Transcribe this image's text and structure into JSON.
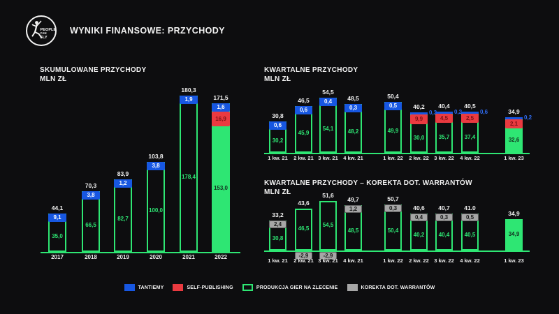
{
  "header": {
    "title": "WYNIKI FINANSOWE: PRZYCHODY",
    "logo_text": [
      "PEOPLE",
      "CAN",
      "FLY"
    ]
  },
  "colors": {
    "background": "#0d0d0f",
    "tantiemy_blue": "#1757e2",
    "self_publishing_red": "#ea3a40",
    "produkcja_green": "#2ee673",
    "korekta_gray": "#a6a6a6",
    "text_white": "#f2f2f2"
  },
  "legend": [
    {
      "label": "TANTIEMY",
      "swatch": "blue"
    },
    {
      "label": "SELF-PUBLISHING",
      "swatch": "red"
    },
    {
      "label": "PRODUKCJA GIER NA ZLECENIE",
      "swatch": "green-outline"
    },
    {
      "label": "KOREKTA DOT. WARRANTÓW",
      "swatch": "gray"
    }
  ],
  "chart_data": [
    {
      "id": "cumulative",
      "type": "bar",
      "stacked": true,
      "title": "SKUMULOWANE PRZYCHODY",
      "unit_label": "MLN ZŁ",
      "categories": [
        "2017",
        "2018",
        "2019",
        "2020",
        "2021",
        "2022"
      ],
      "series": [
        {
          "name": "PRODUKCJA GIER NA ZLECENIE",
          "values": [
            35.0,
            66.5,
            82.7,
            100.0,
            178.4,
            153.0
          ]
        },
        {
          "name": "SELF-PUBLISHING",
          "values": [
            null,
            null,
            null,
            null,
            null,
            16.9
          ]
        },
        {
          "name": "TANTIEMY",
          "values": [
            9.1,
            3.8,
            1.2,
            3.8,
            1.9,
            1.6
          ]
        }
      ],
      "totals": [
        44.1,
        70.3,
        83.9,
        103.8,
        180.3,
        171.5
      ],
      "bars": [
        {
          "category": "2017",
          "total_label": "44,1",
          "segments": [
            {
              "kind": "green-outline",
              "value": 35.0,
              "label": "35,0"
            },
            {
              "kind": "blue",
              "value": 9.1,
              "label": "9,1",
              "label_pos": "inside"
            }
          ]
        },
        {
          "category": "2018",
          "total_label": "70,3",
          "segments": [
            {
              "kind": "green-outline",
              "value": 66.5,
              "label": "66,5"
            },
            {
              "kind": "blue",
              "value": 3.8,
              "label": "3,8",
              "label_pos": "inside"
            }
          ]
        },
        {
          "category": "2019",
          "total_label": "83,9",
          "segments": [
            {
              "kind": "green-outline",
              "value": 82.7,
              "label": "82,7"
            },
            {
              "kind": "blue",
              "value": 1.2,
              "label": "1,2",
              "label_pos": "inside"
            }
          ]
        },
        {
          "category": "2020",
          "total_label": "103,8",
          "segments": [
            {
              "kind": "green-outline",
              "value": 100.0,
              "label": "100,0"
            },
            {
              "kind": "blue",
              "value": 3.8,
              "label": "3,8",
              "label_pos": "inside"
            }
          ]
        },
        {
          "category": "2021",
          "total_label": "180,3",
          "segments": [
            {
              "kind": "green-outline",
              "value": 178.4,
              "label": "178,4"
            },
            {
              "kind": "blue",
              "value": 1.9,
              "label": "1,9",
              "label_pos": "inside"
            }
          ]
        },
        {
          "category": "2022",
          "total_label": "171,5",
          "segments": [
            {
              "kind": "green-solid",
              "value": 153.0,
              "label": "153,0"
            },
            {
              "kind": "red",
              "value": 16.9,
              "label": "16,9",
              "label_pos": "inside"
            },
            {
              "kind": "blue",
              "value": 1.6,
              "label": "1,6",
              "label_pos": "inside"
            }
          ]
        }
      ]
    },
    {
      "id": "quarterly",
      "type": "bar",
      "stacked": true,
      "title": "KWARTALNE PRZYCHODY",
      "unit_label": "MLN ZŁ",
      "categories": [
        "1 kw. 21",
        "2 kw. 21",
        "3 kw. 21",
        "4 kw. 21",
        "1 kw. 22",
        "2 kw. 22",
        "3 kw. 22",
        "4 kw. 22",
        "1 kw. 23"
      ],
      "series": [
        {
          "name": "PRODUKCJA GIER NA ZLECENIE",
          "values": [
            30.2,
            45.9,
            54.1,
            48.2,
            49.9,
            30.0,
            35.7,
            37.4,
            32.6
          ]
        },
        {
          "name": "SELF-PUBLISHING",
          "values": [
            null,
            null,
            null,
            null,
            null,
            9.9,
            4.5,
            2.5,
            2.1
          ]
        },
        {
          "name": "TANTIEMY",
          "values": [
            0.6,
            0.6,
            0.4,
            0.3,
            0.5,
            0.3,
            0.2,
            0.6,
            0.2
          ]
        }
      ],
      "totals": [
        30.8,
        46.5,
        54.5,
        48.5,
        50.4,
        40.2,
        40.4,
        40.5,
        34.9
      ],
      "bars": [
        {
          "category": "1 kw. 21",
          "total_label": "30,8",
          "segments": [
            {
              "kind": "green-outline",
              "value": 30.2,
              "label": "30,2"
            },
            {
              "kind": "blue",
              "value": 0.6,
              "label": "0,6",
              "label_pos": "inside"
            }
          ]
        },
        {
          "category": "2 kw. 21",
          "total_label": "46,5",
          "segments": [
            {
              "kind": "green-outline",
              "value": 45.9,
              "label": "45,9"
            },
            {
              "kind": "blue",
              "value": 0.6,
              "label": "0,6",
              "label_pos": "inside"
            }
          ]
        },
        {
          "category": "3 kw. 21",
          "total_label": "54,5",
          "segments": [
            {
              "kind": "green-outline",
              "value": 54.1,
              "label": "54,1"
            },
            {
              "kind": "blue",
              "value": 0.4,
              "label": "0,4",
              "label_pos": "inside"
            }
          ]
        },
        {
          "category": "4 kw. 21",
          "total_label": "48,5",
          "segments": [
            {
              "kind": "green-outline",
              "value": 48.2,
              "label": "48,2"
            },
            {
              "kind": "blue",
              "value": 0.3,
              "label": "0,3",
              "label_pos": "inside"
            }
          ]
        },
        {
          "category": "1 kw. 22",
          "total_label": "50,4",
          "segments": [
            {
              "kind": "green-outline",
              "value": 49.9,
              "label": "49,9"
            },
            {
              "kind": "blue",
              "value": 0.5,
              "label": "0,5",
              "label_pos": "inside"
            }
          ]
        },
        {
          "category": "2 kw. 22",
          "total_label": "40,2",
          "segments": [
            {
              "kind": "green-outline",
              "value": 30.0,
              "label": "30,0"
            },
            {
              "kind": "red",
              "value": 9.9,
              "label": "9,9",
              "label_pos": "inside"
            },
            {
              "kind": "blue",
              "value": 0.3,
              "label": "0,3",
              "label_pos": "right"
            }
          ]
        },
        {
          "category": "3 kw. 22",
          "total_label": "40,4",
          "segments": [
            {
              "kind": "green-outline",
              "value": 35.7,
              "label": "35,7"
            },
            {
              "kind": "red",
              "value": 4.5,
              "label": "4,5",
              "label_pos": "inside"
            },
            {
              "kind": "blue",
              "value": 0.2,
              "label": "0,2",
              "label_pos": "right"
            }
          ]
        },
        {
          "category": "4 kw. 22",
          "total_label": "40,5",
          "segments": [
            {
              "kind": "green-outline",
              "value": 37.4,
              "label": "37,4"
            },
            {
              "kind": "red",
              "value": 2.5,
              "label": "2,5",
              "label_pos": "inside"
            },
            {
              "kind": "blue",
              "value": 0.6,
              "label": "0,6",
              "label_pos": "right"
            }
          ]
        },
        {
          "category": "1 kw. 23",
          "total_label": "34,9",
          "segments": [
            {
              "kind": "green-solid",
              "value": 32.6,
              "label": "32,6"
            },
            {
              "kind": "red",
              "value": 2.1,
              "label": "2,1",
              "label_pos": "inside"
            },
            {
              "kind": "blue",
              "value": 0.2,
              "label": "0,2",
              "label_pos": "right"
            }
          ]
        }
      ]
    },
    {
      "id": "corrected",
      "type": "bar",
      "stacked": true,
      "title": "KWARTALNE PRZYCHODY – KOREKTA DOT. WARRANTÓW",
      "unit_label": "MLN ZŁ",
      "categories": [
        "1 kw. 21",
        "2 kw. 21",
        "3 kw. 21",
        "4 kw. 21",
        "1 kw. 22",
        "2 kw. 22",
        "3 kw. 22",
        "4 kw. 22",
        "1 kw. 23"
      ],
      "series": [
        {
          "name": "PRODUKCJA GIER NA ZLECENIE",
          "values": [
            30.8,
            46.5,
            54.5,
            48.5,
            50.4,
            40.2,
            40.4,
            40.5,
            34.9
          ]
        },
        {
          "name": "KOREKTA DOT. WARRANTÓW",
          "values": [
            2.4,
            -2.9,
            -2.9,
            1.2,
            0.3,
            0.4,
            0.3,
            0.5,
            null
          ]
        }
      ],
      "totals": [
        33.2,
        43.6,
        51.6,
        49.7,
        50.7,
        40.6,
        40.7,
        41.0,
        34.9
      ],
      "bars": [
        {
          "category": "1 kw. 21",
          "total_label": "33,2",
          "segments": [
            {
              "kind": "green-outline",
              "value": 30.8,
              "label": "30,8"
            },
            {
              "kind": "gray",
              "value": 2.4,
              "label": "2,4",
              "label_pos": "inside"
            }
          ]
        },
        {
          "category": "2 kw. 21",
          "total_label": "43,6",
          "segments": [
            {
              "kind": "green-outline",
              "value": 46.5,
              "label": "46,5"
            },
            {
              "kind": "gray",
              "value": -2.9,
              "label": "-2,9",
              "below_axis": true
            }
          ]
        },
        {
          "category": "3 kw. 21",
          "total_label": "51,6",
          "segments": [
            {
              "kind": "green-outline",
              "value": 54.5,
              "label": "54,5"
            },
            {
              "kind": "gray",
              "value": -2.9,
              "label": "-2,9",
              "below_axis": true
            }
          ]
        },
        {
          "category": "4 kw. 21",
          "total_label": "49,7",
          "segments": [
            {
              "kind": "green-outline",
              "value": 48.5,
              "label": "48,5"
            },
            {
              "kind": "gray",
              "value": 1.2,
              "label": "1,2",
              "label_pos": "inside"
            }
          ]
        },
        {
          "category": "1 kw. 22",
          "total_label": "50,7",
          "segments": [
            {
              "kind": "green-outline",
              "value": 50.4,
              "label": "50,4"
            },
            {
              "kind": "gray",
              "value": 0.3,
              "label": "0,3",
              "label_pos": "inside"
            }
          ]
        },
        {
          "category": "2 kw. 22",
          "total_label": "40,6",
          "segments": [
            {
              "kind": "green-outline",
              "value": 40.2,
              "label": "40,2"
            },
            {
              "kind": "gray",
              "value": 0.4,
              "label": "0,4",
              "label_pos": "inside"
            }
          ]
        },
        {
          "category": "3 kw. 22",
          "total_label": "40,7",
          "segments": [
            {
              "kind": "green-outline",
              "value": 40.4,
              "label": "40,4"
            },
            {
              "kind": "gray",
              "value": 0.3,
              "label": "0,3",
              "label_pos": "inside"
            }
          ]
        },
        {
          "category": "4 kw. 22",
          "total_label": "41.0",
          "segments": [
            {
              "kind": "green-outline",
              "value": 40.5,
              "label": "40,5"
            },
            {
              "kind": "gray",
              "value": 0.5,
              "label": "0,5",
              "label_pos": "inside"
            }
          ]
        },
        {
          "category": "1 kw. 23",
          "total_label": "34,9",
          "segments": [
            {
              "kind": "green-solid",
              "value": 34.9,
              "label": "34,9"
            }
          ]
        }
      ]
    }
  ]
}
